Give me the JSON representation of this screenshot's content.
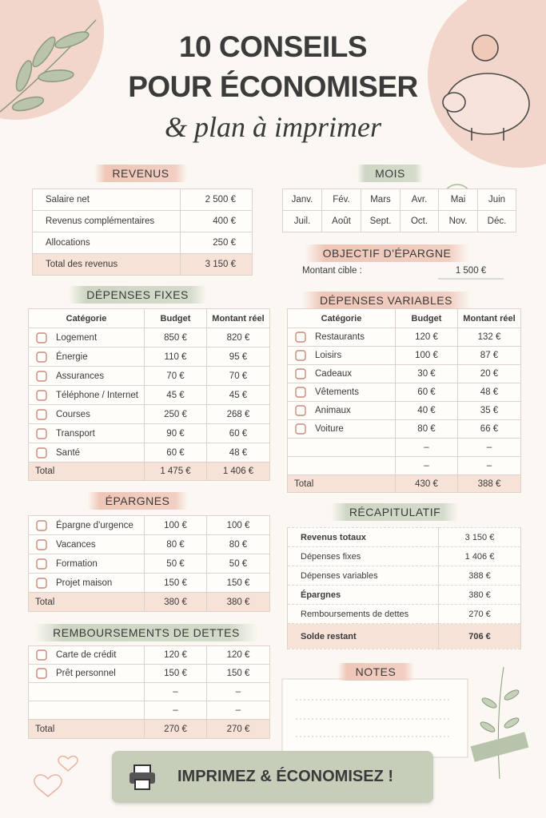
{
  "header": {
    "title_line1": "10 CONSEILS",
    "title_line2": "POUR ÉCONOMISER",
    "subtitle": "& plan à imprimer"
  },
  "revenus": {
    "title": "REVENUS",
    "rows": [
      [
        "Salaire net",
        "2 500 €"
      ],
      [
        "Revenus complémentaires",
        "400 €"
      ],
      [
        "Allocations",
        "250 €"
      ]
    ],
    "total": [
      "Total des revenus",
      "3 150 €"
    ]
  },
  "mois": {
    "title": "MOIS",
    "rows": [
      [
        "Janv.",
        "Fév.",
        "Mars",
        "Avr.",
        "Mai",
        "Juin"
      ],
      [
        "Juil.",
        "Août",
        "Sept.",
        "Oct.",
        "Nov.",
        "Déc."
      ]
    ]
  },
  "objectif": {
    "title": "OBJECTIF D'ÉPARGNE",
    "label": "Montant cible :",
    "value": "1 500 €"
  },
  "depenses_fixes": {
    "title": "DÉPENSES FIXES",
    "header": [
      "Catégorie",
      "Budget",
      "Montant réel"
    ],
    "rows": [
      [
        "Logement",
        "850 €",
        "820 €"
      ],
      [
        "Énergie",
        "110 €",
        "95 €"
      ],
      [
        "Assurances",
        "70 €",
        "70 €"
      ],
      [
        "Téléphone / Internet",
        "45 €",
        "45 €"
      ],
      [
        "Courses",
        "250 €",
        "268 €"
      ],
      [
        "Transport",
        "90 €",
        "60 €"
      ],
      [
        "Santé",
        "60 €",
        "48 €"
      ]
    ],
    "total": [
      "Total",
      "1 475 €",
      "1 406 €"
    ]
  },
  "depenses_variables": {
    "title": "DÉPENSES VARIABLES",
    "header": [
      "Catégorie",
      "Budget",
      "Montant réel"
    ],
    "rows": [
      [
        "Restaurants",
        "120 €",
        "132 €"
      ],
      [
        "Loisirs",
        "100 €",
        "87 €"
      ],
      [
        "Cadeaux",
        "30 €",
        "20 €"
      ],
      [
        "Vêtements",
        "60 €",
        "48 €"
      ],
      [
        "Animaux",
        "40 €",
        "35 €"
      ],
      [
        "Voiture",
        "80 €",
        "66 €"
      ],
      [
        "",
        "–",
        "–"
      ],
      [
        "",
        "–",
        "–"
      ]
    ],
    "total": [
      "Total",
      "430 €",
      "388 €"
    ]
  },
  "epargnes": {
    "title": "ÉPARGNES",
    "rows": [
      [
        "Épargne d'urgence",
        "100 €",
        "100 €"
      ],
      [
        "Vacances",
        "80 €",
        "80 €"
      ],
      [
        "Formation",
        "50 €",
        "50 €"
      ],
      [
        "Projet maison",
        "150 €",
        "150 €"
      ]
    ],
    "total": [
      "Total",
      "380 €",
      "380 €"
    ]
  },
  "dettes": {
    "title": "REMBOURSEMENTS DE DETTES",
    "rows": [
      [
        "Carte de crédit",
        "120 €",
        "120 €"
      ],
      [
        "Prêt personnel",
        "150 €",
        "150 €"
      ],
      [
        "",
        "–",
        "–"
      ],
      [
        "",
        "–",
        "–"
      ]
    ],
    "total": [
      "Total",
      "270 €",
      "270 €"
    ]
  },
  "recapitulatif": {
    "title": "RÉCAPITULATIF",
    "rows": [
      [
        "Revenus totaux",
        "3 150 €"
      ],
      [
        "Dépenses fixes",
        "1 406 €"
      ],
      [
        "Dépenses variables",
        "388 €"
      ],
      [
        "Épargnes",
        "380 €"
      ],
      [
        "Remboursements de dettes",
        "270 €"
      ]
    ],
    "total": [
      "Solde restant",
      "706 €"
    ]
  },
  "notes": {
    "title": "NOTES"
  },
  "button": {
    "label": "IMPRIMEZ & ÉCONOMISEZ !"
  }
}
